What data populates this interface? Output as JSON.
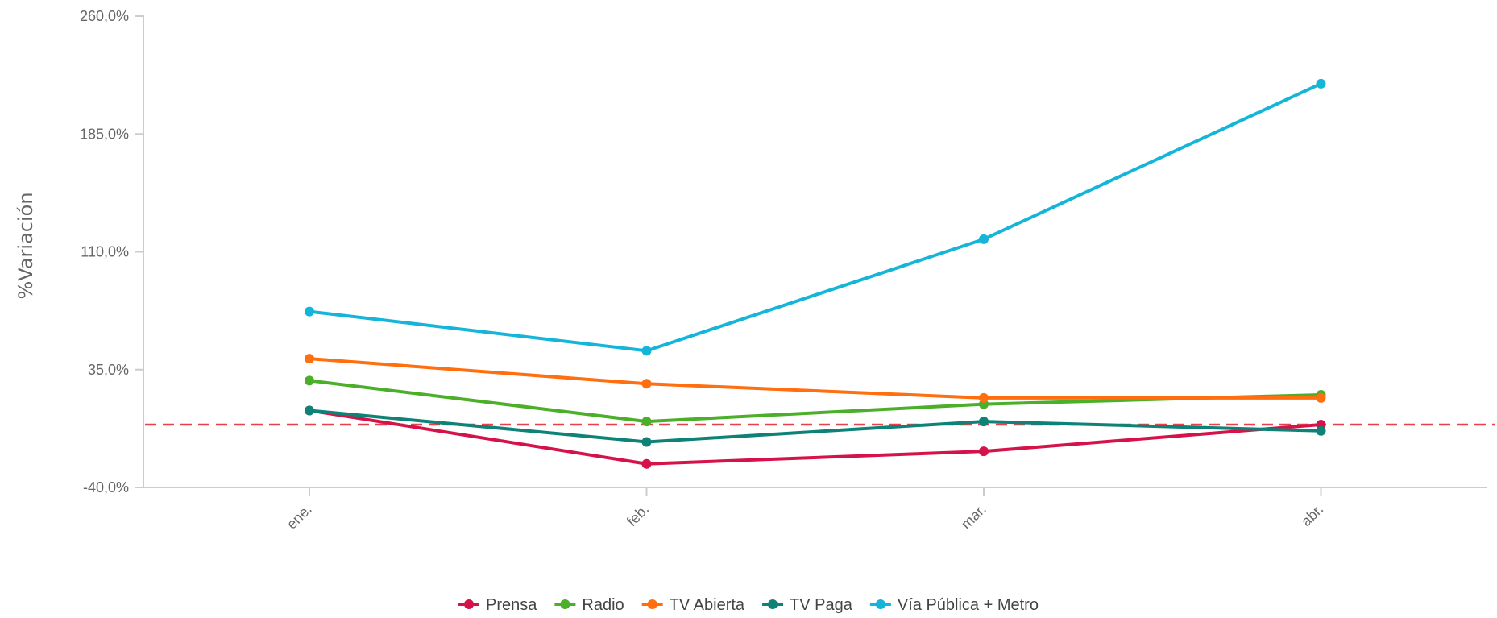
{
  "chart_data": {
    "type": "line",
    "title": "",
    "xlabel": "",
    "ylabel": "%Variación",
    "ylim": [
      -40,
      260
    ],
    "yticks": [
      -40,
      35,
      110,
      185,
      260
    ],
    "ytick_labels": [
      "-40,0%",
      "35,0%",
      "110,0%",
      "185,0%",
      "260,0%"
    ],
    "categories": [
      "ene.",
      "feb.",
      "mar.",
      "abr."
    ],
    "reference_line": {
      "y": 0,
      "style": "dashed",
      "color": "#e8404a"
    },
    "grid": false,
    "legend_position": "bottom-center",
    "series": [
      {
        "name": "Prensa",
        "color": "#d6124a",
        "values": [
          9,
          -25,
          -17,
          0
        ]
      },
      {
        "name": "Radio",
        "color": "#4caf2a",
        "values": [
          28,
          2,
          13,
          19
        ]
      },
      {
        "name": "TV Abierta",
        "color": "#ff6e0f",
        "values": [
          42,
          26,
          17,
          17
        ]
      },
      {
        "name": "TV Paga",
        "color": "#0e8276",
        "values": [
          9,
          -11,
          2,
          -4
        ]
      },
      {
        "name": "Vía Pública + Metro",
        "color": "#14b5d8",
        "values": [
          72,
          47,
          118,
          217
        ]
      }
    ]
  }
}
